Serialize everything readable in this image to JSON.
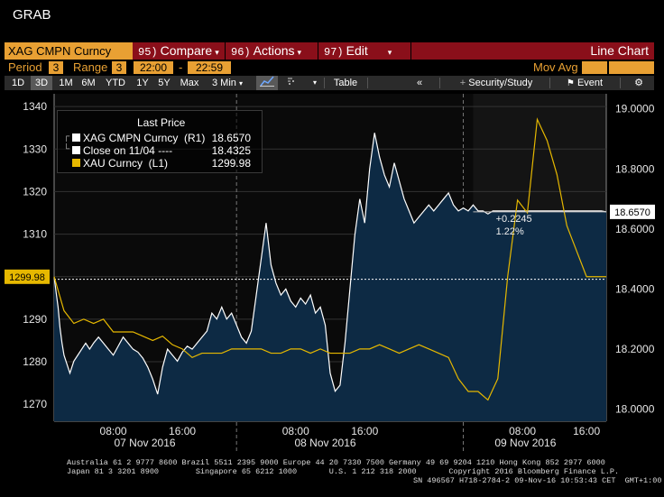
{
  "window_title": "GRAB",
  "toolbar_row1": {
    "security": "XAG CMPN Curncy",
    "menus": [
      {
        "num": "95)",
        "label": "Compare",
        "dropdown": true
      },
      {
        "num": "96)",
        "label": "Actions",
        "dropdown": true
      },
      {
        "num": "97)",
        "label": "Edit",
        "dropdown": true
      }
    ],
    "chart_type": "Line Chart"
  },
  "toolbar_row2": {
    "period_label": "Period",
    "period_value": "3",
    "range_label": "Range",
    "range_value": "3",
    "range_start": "22:00",
    "range_dash": "-",
    "range_end": "22:59",
    "mov_avg_label": "Mov Avg"
  },
  "toolbar_row3": {
    "timeframes": [
      "1D",
      "3D",
      "1M",
      "6M",
      "YTD",
      "1Y",
      "5Y",
      "Max"
    ],
    "selected_timeframe": "3D",
    "interval": "3 Min",
    "table_label": "Table",
    "collapse_label": "«",
    "security_study_label": "Security/Study",
    "event_label": "Event"
  },
  "legend": {
    "title": "Last Price",
    "rows": [
      {
        "name": "XAG CMPN Curncy  (R1)",
        "value": "18.6570",
        "color": "#ffffff"
      },
      {
        "name": "Close on 11/04 ----",
        "value": "18.4325",
        "color": "#ffffff"
      },
      {
        "name": "XAU Curncy  (L1)",
        "value": "1299.98",
        "color": "#e6b800"
      }
    ]
  },
  "change_box": {
    "abs": "+0.2245",
    "pct": "1.22%"
  },
  "left_price_tag": "1299.98",
  "right_price_tag": "18.6570",
  "chart_data": {
    "type": "line",
    "title": "",
    "x_ticks": [
      "08:00",
      "16:00",
      "08:00",
      "16:00",
      "08:00",
      "16:00"
    ],
    "x_days": [
      "07 Nov 2016",
      "08 Nov 2016",
      "09 Nov 2016"
    ],
    "left_axis": {
      "label": "",
      "ticks": [
        1270,
        1280,
        1290,
        1300,
        1310,
        1320,
        1330,
        1340
      ],
      "range": [
        1266,
        1343
      ]
    },
    "right_axis": {
      "label": "",
      "ticks": [
        "18.0000",
        "18.2000",
        "18.4000",
        "18.6000",
        "18.8000",
        "19.0000"
      ],
      "range": [
        17.96,
        19.05
      ]
    },
    "close_reference": 18.4325,
    "series": [
      {
        "name": "XAG CMPN Curncy (R1)",
        "axis": "right",
        "color": "#ffffff",
        "fill": "#0d2a44",
        "x": [
          0,
          0.4,
          0.6,
          0.8,
          1.0,
          1.3,
          1.6,
          2.0,
          2.4,
          2.8,
          3.2,
          3.6,
          4.0,
          4.5,
          5.0,
          5.5,
          6.0,
          6.5,
          7.0,
          7.5,
          8.0,
          8.5,
          9.0,
          9.5,
          10.0,
          10.5,
          11.0,
          11.5,
          12.0,
          12.5,
          13.0,
          13.5,
          14.0,
          14.5,
          15.0,
          15.5,
          16.0,
          16.5,
          17.0,
          17.5,
          18.0,
          18.5,
          19.0,
          19.5,
          20.0,
          20.5,
          21.0,
          21.5,
          22.0,
          22.5,
          23.0,
          23.5,
          24.0,
          24.5,
          25.0,
          25.5,
          26.0,
          26.5,
          27.0,
          27.5,
          28.0,
          28.5,
          29.0,
          29.5,
          30.0,
          30.5,
          31.0,
          31.5,
          32.0,
          32.5,
          33.0,
          33.5,
          34.0,
          34.5,
          35.0,
          35.5,
          36.0,
          36.5,
          37.0,
          37.5,
          38.0,
          38.5,
          39.0,
          39.5,
          40.0,
          40.5,
          41.0,
          41.5,
          42.0,
          42.5,
          43.0,
          43.5,
          44.0,
          44.5,
          45.0,
          45.5,
          46.0,
          46.5,
          47.0,
          47.5,
          48.0,
          48.5,
          49.0,
          49.5,
          50.0,
          50.5,
          51.0,
          51.5,
          52.0,
          52.5,
          53.0,
          53.5,
          54.0,
          54.5,
          55.0,
          55.5,
          56.0
        ],
        "values": [
          18.44,
          18.34,
          18.27,
          18.22,
          18.18,
          18.15,
          18.12,
          18.16,
          18.18,
          18.2,
          18.22,
          18.2,
          18.22,
          18.24,
          18.22,
          18.2,
          18.18,
          18.21,
          18.24,
          18.22,
          18.2,
          18.19,
          18.17,
          18.14,
          18.1,
          18.05,
          18.14,
          18.2,
          18.18,
          18.16,
          18.19,
          18.21,
          18.2,
          18.22,
          18.24,
          18.26,
          18.32,
          18.3,
          18.34,
          18.3,
          18.32,
          18.28,
          18.24,
          18.22,
          18.26,
          18.38,
          18.5,
          18.62,
          18.48,
          18.42,
          18.38,
          18.4,
          18.36,
          18.34,
          18.37,
          18.35,
          18.38,
          18.32,
          18.34,
          18.28,
          18.12,
          18.06,
          18.08,
          18.22,
          18.4,
          18.58,
          18.7,
          18.62,
          18.8,
          18.92,
          18.84,
          18.78,
          18.74,
          18.82,
          18.76,
          18.7,
          18.66,
          18.62,
          18.64,
          18.66,
          18.68,
          18.66,
          18.68,
          18.7,
          18.72,
          18.68,
          18.66,
          18.67,
          18.66,
          18.68,
          18.66,
          18.66,
          18.65,
          18.66,
          18.66,
          18.66,
          18.66,
          18.66,
          18.66,
          18.66,
          18.66,
          18.66,
          18.66,
          18.66,
          18.66,
          18.66,
          18.66,
          18.66,
          18.66,
          18.66,
          18.66,
          18.66,
          18.66,
          18.66,
          18.66,
          18.66,
          18.657
        ]
      },
      {
        "name": "XAU Curncy (L1)",
        "axis": "left",
        "color": "#e6b800",
        "x": [
          0,
          1,
          2,
          3,
          4,
          5,
          6,
          7,
          8,
          9,
          10,
          11,
          12,
          13,
          14,
          15,
          16,
          17,
          18,
          19,
          20,
          21,
          22,
          23,
          24,
          25,
          26,
          27,
          28,
          29,
          30,
          31,
          32,
          33,
          34,
          35,
          36,
          37,
          38,
          39,
          40,
          41,
          42,
          43,
          44,
          45,
          46,
          47,
          48,
          49,
          50,
          51,
          52,
          53,
          54,
          55,
          56
        ],
        "values": [
          1300,
          1292,
          1289,
          1290,
          1289,
          1290,
          1287,
          1287,
          1287,
          1286,
          1285,
          1286,
          1284,
          1283,
          1281,
          1282,
          1282,
          1282,
          1283,
          1283,
          1283,
          1283,
          1282,
          1282,
          1283,
          1283,
          1282,
          1283,
          1282,
          1282,
          1282,
          1283,
          1283,
          1284,
          1283,
          1282,
          1283,
          1284,
          1283,
          1282,
          1281,
          1276,
          1273,
          1273,
          1271,
          1276,
          1300,
          1318,
          1315,
          1337,
          1332,
          1324,
          1312,
          1306,
          1300,
          1300,
          1300
        ]
      }
    ]
  },
  "footer": {
    "line1": "Australia 61 2 9777 8600 Brazil 5511 2395 9000 Europe 44 20 7330 7500 Germany 49 69 9204 1210 Hong Kong 852 2977 6000",
    "line2": "Japan 81 3 3201 8900        Singapore 65 6212 1000       U.S. 1 212 318 2000       Copyright 2016 Bloomberg Finance L.P.",
    "line3": "SN 496567 H718-2784-2 09-Nov-16 10:53:43 CET  GMT+1:00"
  }
}
